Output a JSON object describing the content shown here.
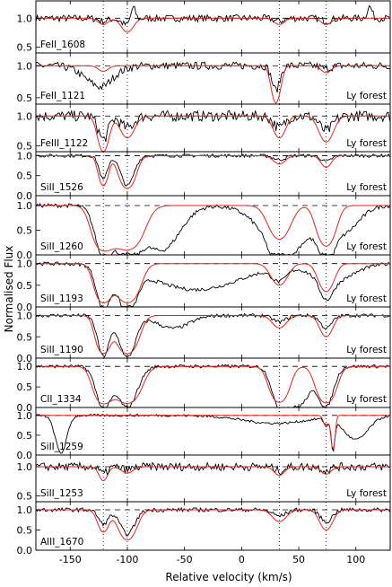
{
  "chart_data": {
    "type": "line",
    "xlabel": "Relative velocity (km/s)",
    "ylabel": "Normalised Flux",
    "xlim": [
      -180,
      130
    ],
    "x_ticks": [
      "-150",
      "-100",
      "-50",
      "0",
      "50",
      "100"
    ],
    "x_tick_values": [
      -150,
      -100,
      -50,
      0,
      50,
      100
    ],
    "component_velocities": [
      -121,
      -100,
      33,
      74
    ],
    "colors": {
      "data": "#000000",
      "model": "#e8231e",
      "frame": "#000000"
    },
    "panels": [
      {
        "label": "FeII_1608",
        "region_label": "",
        "ylim": [
          0.4,
          1.3
        ],
        "yticks": [
          0.5,
          1.0
        ],
        "model_lines": [
          {
            "v": -121,
            "depth": 0.05,
            "width": 6
          },
          {
            "v": -100,
            "depth": 0.12,
            "width": 7
          },
          {
            "v": 33,
            "depth": 0.05,
            "width": 6
          },
          {
            "v": 74,
            "depth": 0.05,
            "width": 6
          }
        ],
        "data_noise": 0.06,
        "data_extra": [
          {
            "v": -95,
            "depth": -0.25,
            "width": 3
          },
          {
            "v": 112,
            "depth": -0.2,
            "width": 3
          }
        ]
      },
      {
        "label": "FeII_1121",
        "region_label": "Ly forest",
        "ylim": [
          0.4,
          1.2
        ],
        "yticks": [
          0.5,
          1.0
        ],
        "model_lines": [
          {
            "v": -121,
            "depth": 0.04,
            "width": 6
          },
          {
            "v": 30,
            "depth": 0.38,
            "width": 5
          },
          {
            "v": 74,
            "depth": 0.05,
            "width": 6
          }
        ],
        "data_noise": 0.06,
        "data_extra": [
          {
            "v": -125,
            "depth": 0.3,
            "width": 18
          }
        ]
      },
      {
        "label": "FeIII_1122",
        "region_label": "Ly forest",
        "ylim": [
          0.4,
          1.2
        ],
        "yticks": [
          0.5,
          1.0
        ],
        "model_lines": [
          {
            "v": -121,
            "depth": 0.4,
            "width": 6
          },
          {
            "v": -100,
            "depth": 0.2,
            "width": 8
          },
          {
            "v": 33,
            "depth": 0.2,
            "width": 7
          },
          {
            "v": 74,
            "depth": 0.25,
            "width": 8
          }
        ],
        "data_noise": 0.09,
        "data_extra": []
      },
      {
        "label": "SiII_1526",
        "region_label": "Ly forest",
        "ylim": [
          0.0,
          1.1
        ],
        "yticks": [
          0.0,
          0.5,
          1.0
        ],
        "model_lines": [
          {
            "v": -121,
            "depth": 0.6,
            "width": 5
          },
          {
            "v": -100,
            "depth": 0.75,
            "width": 8
          },
          {
            "v": 33,
            "depth": 0.1,
            "width": 7
          },
          {
            "v": 74,
            "depth": 0.15,
            "width": 6
          }
        ],
        "data_noise": 0.04,
        "data_extra": []
      },
      {
        "label": "SiII_1260",
        "region_label": "Ly forest",
        "ylim": [
          0.0,
          1.2
        ],
        "yticks": [
          0.0,
          0.5,
          1.0
        ],
        "model_lines": [
          {
            "v": -121,
            "depth": 1.0,
            "width": 10
          },
          {
            "v": -100,
            "depth": 1.0,
            "width": 14
          },
          {
            "v": 33,
            "depth": 0.5,
            "width": 11
          },
          {
            "v": 74,
            "depth": 0.75,
            "width": 9
          }
        ],
        "data_noise": 0.04,
        "data_extra": [
          {
            "v": -70,
            "depth": 0.9,
            "width": 22
          },
          {
            "v": 40,
            "depth": 0.9,
            "width": 30
          },
          {
            "v": 90,
            "depth": 0.5,
            "width": 18
          }
        ]
      },
      {
        "label": "SiII_1193",
        "region_label": "Ly forest",
        "ylim": [
          0.0,
          1.2
        ],
        "yticks": [
          0.0,
          0.5,
          1.0
        ],
        "model_lines": [
          {
            "v": -121,
            "depth": 1.0,
            "width": 8
          },
          {
            "v": -100,
            "depth": 1.0,
            "width": 11
          },
          {
            "v": 33,
            "depth": 0.3,
            "width": 9
          },
          {
            "v": 74,
            "depth": 0.45,
            "width": 8
          }
        ],
        "data_noise": 0.04,
        "data_extra": [
          {
            "v": -40,
            "depth": 0.6,
            "width": 55
          },
          {
            "v": 80,
            "depth": 0.4,
            "width": 25
          }
        ]
      },
      {
        "label": "SiII_1190",
        "region_label": "Ly forest",
        "ylim": [
          0.0,
          1.2
        ],
        "yticks": [
          0.0,
          0.5,
          1.0
        ],
        "model_lines": [
          {
            "v": -121,
            "depth": 0.95,
            "width": 7
          },
          {
            "v": -100,
            "depth": 0.98,
            "width": 10
          },
          {
            "v": 33,
            "depth": 0.15,
            "width": 8
          },
          {
            "v": 74,
            "depth": 0.3,
            "width": 7
          }
        ],
        "data_noise": 0.04,
        "data_extra": [
          {
            "v": -60,
            "depth": 0.3,
            "width": 20
          }
        ]
      },
      {
        "label": "CII_1334",
        "region_label": "Ly forest",
        "ylim": [
          0.0,
          1.2
        ],
        "yticks": [
          0.0,
          0.5,
          1.0
        ],
        "model_lines": [
          {
            "v": -121,
            "depth": 1.0,
            "width": 9
          },
          {
            "v": -100,
            "depth": 1.0,
            "width": 12
          },
          {
            "v": 33,
            "depth": 0.9,
            "width": 9
          },
          {
            "v": 74,
            "depth": 0.95,
            "width": 9
          }
        ],
        "data_noise": 0.04,
        "data_extra": [
          {
            "v": 50,
            "depth": 0.95,
            "width": 14
          }
        ]
      },
      {
        "label": "SiII_1259",
        "region_label": "",
        "ylim": [
          0.0,
          1.2
        ],
        "yticks": [
          0.0,
          0.5,
          1.0
        ],
        "model_lines": [
          {
            "v": 74,
            "depth": 0.15,
            "width": 3
          },
          {
            "v": 80,
            "depth": 0.8,
            "width": 2
          }
        ],
        "data_noise": 0.03,
        "data_extra": [
          {
            "v": -158,
            "depth": 0.95,
            "width": 7
          },
          {
            "v": 100,
            "depth": 0.6,
            "width": 15
          },
          {
            "v": 30,
            "depth": 0.2,
            "width": 40
          }
        ]
      },
      {
        "label": "SiII_1253",
        "region_label": "Ly forest",
        "ylim": [
          0.4,
          1.2
        ],
        "yticks": [
          0.5,
          1.0
        ],
        "model_lines": [
          {
            "v": -121,
            "depth": 0.12,
            "width": 5
          },
          {
            "v": -100,
            "depth": 0.05,
            "width": 7
          },
          {
            "v": 33,
            "depth": 0.07,
            "width": 6
          },
          {
            "v": 74,
            "depth": 0.06,
            "width": 6
          }
        ],
        "data_noise": 0.07,
        "data_extra": []
      },
      {
        "label": "AlII_1670",
        "region_label": "",
        "ylim": [
          0.0,
          1.2
        ],
        "yticks": [
          0.0,
          0.5,
          1.0
        ],
        "model_lines": [
          {
            "v": -121,
            "depth": 0.35,
            "width": 6
          },
          {
            "v": -100,
            "depth": 0.6,
            "width": 9
          },
          {
            "v": 33,
            "depth": 0.15,
            "width": 8
          },
          {
            "v": 74,
            "depth": 0.3,
            "width": 7
          }
        ],
        "data_noise": 0.05,
        "data_extra": []
      }
    ]
  }
}
